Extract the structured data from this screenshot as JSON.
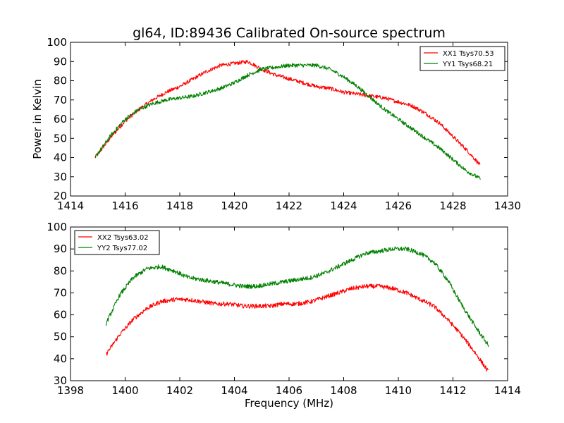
{
  "title": "gl64, ID:89436 Calibrated On-source spectrum",
  "ylabel": "Power in Kelvin",
  "xlabel": "Frequency (MHz)",
  "colors": {
    "red": "#ff0000",
    "green": "#008000"
  },
  "chart_data": [
    {
      "type": "line",
      "xlim": [
        1414,
        1430
      ],
      "ylim": [
        20,
        100
      ],
      "xticks": [
        1414,
        1416,
        1418,
        1420,
        1422,
        1424,
        1426,
        1428,
        1430
      ],
      "yticks": [
        20,
        30,
        40,
        50,
        60,
        70,
        80,
        90,
        100
      ],
      "legend_position": "top-right",
      "series": [
        {
          "name": "XX1 Tsys70.53",
          "color": "#ff0000",
          "x": [
            1414.9,
            1415.5,
            1416.0,
            1416.5,
            1417.0,
            1417.5,
            1418.0,
            1418.5,
            1419.0,
            1419.5,
            1420.0,
            1420.5,
            1421.0,
            1421.5,
            1422.0,
            1422.5,
            1423.0,
            1423.5,
            1424.0,
            1424.5,
            1425.0,
            1425.5,
            1426.0,
            1426.5,
            1427.0,
            1427.5,
            1428.0,
            1428.5,
            1429.0
          ],
          "y": [
            40,
            51,
            59,
            65,
            70,
            74,
            77,
            81,
            85,
            88,
            89,
            90,
            86,
            83,
            81,
            79,
            77,
            76,
            74,
            73,
            72,
            71,
            69,
            67,
            63,
            58,
            51,
            44,
            36
          ]
        },
        {
          "name": "YY1 Tsys68.21",
          "color": "#008000",
          "x": [
            1414.9,
            1415.5,
            1416.0,
            1416.5,
            1417.0,
            1417.5,
            1418.0,
            1418.5,
            1419.0,
            1419.5,
            1420.0,
            1420.5,
            1421.0,
            1421.5,
            1422.0,
            1422.5,
            1423.0,
            1423.5,
            1424.0,
            1424.5,
            1425.0,
            1425.5,
            1426.0,
            1426.5,
            1427.0,
            1427.5,
            1428.0,
            1428.5,
            1429.0
          ],
          "y": [
            40,
            52,
            60,
            65,
            68,
            70,
            71,
            72,
            74,
            76,
            79,
            83,
            86,
            87,
            88,
            88,
            88,
            86,
            82,
            77,
            71,
            65,
            60,
            55,
            50,
            45,
            39,
            33,
            29
          ]
        }
      ]
    },
    {
      "type": "line",
      "xlim": [
        1398,
        1414
      ],
      "ylim": [
        30,
        100
      ],
      "xticks": [
        1398,
        1400,
        1402,
        1404,
        1406,
        1408,
        1410,
        1412,
        1414
      ],
      "yticks": [
        30,
        40,
        50,
        60,
        70,
        80,
        90,
        100
      ],
      "legend_position": "top-left",
      "series": [
        {
          "name": "XX2 Tsys63.02",
          "color": "#ff0000",
          "x": [
            1399.3,
            1399.8,
            1400.3,
            1400.8,
            1401.3,
            1401.8,
            1402.3,
            1402.8,
            1403.3,
            1403.8,
            1404.3,
            1404.8,
            1405.3,
            1405.8,
            1406.3,
            1406.8,
            1407.3,
            1407.8,
            1408.3,
            1408.8,
            1409.3,
            1409.8,
            1410.3,
            1410.8,
            1411.3,
            1411.8,
            1412.3,
            1412.8,
            1413.3
          ],
          "y": [
            42,
            51,
            58,
            63,
            66,
            67,
            67,
            66,
            65,
            65,
            64,
            64,
            64,
            65,
            65,
            66,
            68,
            70,
            72,
            73,
            73,
            72,
            70,
            67,
            64,
            58,
            51,
            43,
            34
          ]
        },
        {
          "name": "YY2 Tsys77.02",
          "color": "#008000",
          "x": [
            1399.3,
            1399.8,
            1400.3,
            1400.8,
            1401.3,
            1401.8,
            1402.3,
            1402.8,
            1403.3,
            1403.8,
            1404.3,
            1404.8,
            1405.3,
            1405.8,
            1406.3,
            1406.8,
            1407.3,
            1407.8,
            1408.3,
            1408.8,
            1409.3,
            1409.8,
            1410.3,
            1410.8,
            1411.3,
            1411.8,
            1412.3,
            1412.8,
            1413.3
          ],
          "y": [
            56,
            69,
            77,
            81,
            82,
            80,
            77,
            76,
            75,
            74,
            73,
            73,
            74,
            75,
            76,
            77,
            79,
            82,
            85,
            88,
            89,
            90,
            90,
            88,
            84,
            76,
            65,
            55,
            46
          ]
        }
      ]
    }
  ]
}
